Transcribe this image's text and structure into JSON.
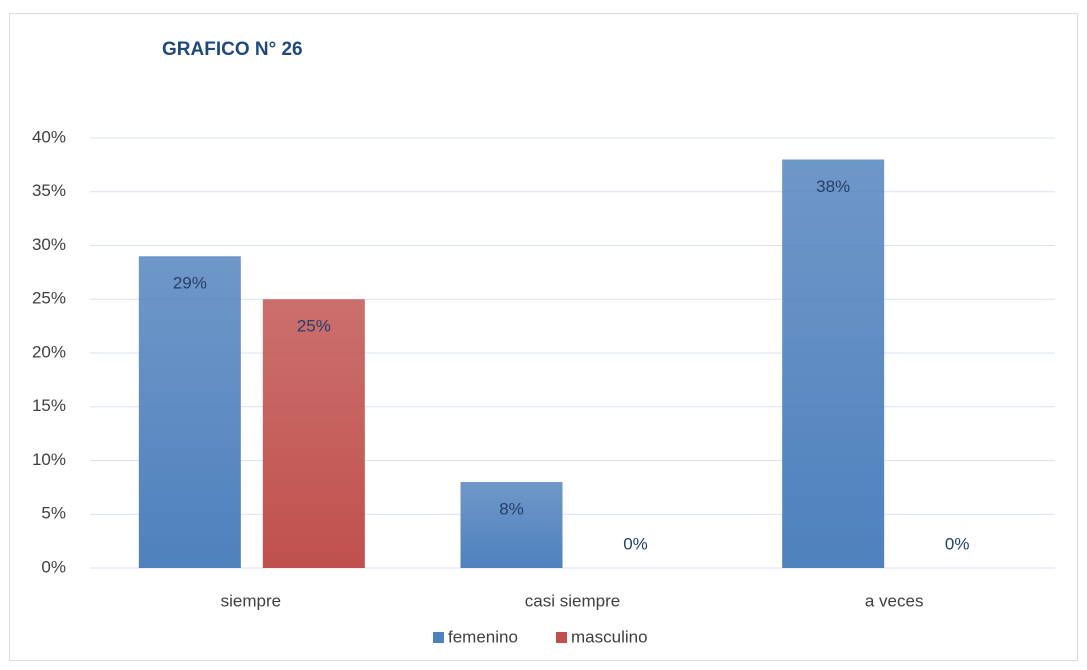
{
  "chart_data": {
    "type": "bar",
    "title": "GRAFICO N° 26",
    "categories": [
      "siempre",
      "casi siempre",
      "a veces"
    ],
    "series": [
      {
        "name": "femenino",
        "color": "#4f81bd",
        "values": [
          29,
          8,
          38
        ],
        "value_labels": [
          "29%",
          "8%",
          "38%"
        ]
      },
      {
        "name": "masculino",
        "color": "#c0504d",
        "values": [
          25,
          0,
          0
        ],
        "value_labels": [
          "25%",
          "0%",
          "0%"
        ]
      }
    ],
    "ylim": [
      0,
      40
    ],
    "yticks": [
      {
        "value": 0,
        "label": "0%"
      },
      {
        "value": 5,
        "label": "5%"
      },
      {
        "value": 10,
        "label": "10%"
      },
      {
        "value": 15,
        "label": "15%"
      },
      {
        "value": 20,
        "label": "20%"
      },
      {
        "value": 25,
        "label": "25%"
      },
      {
        "value": 30,
        "label": "30%"
      },
      {
        "value": 35,
        "label": "35%"
      },
      {
        "value": 40,
        "label": "40%"
      }
    ],
    "grid": true,
    "legend": "bottom"
  }
}
